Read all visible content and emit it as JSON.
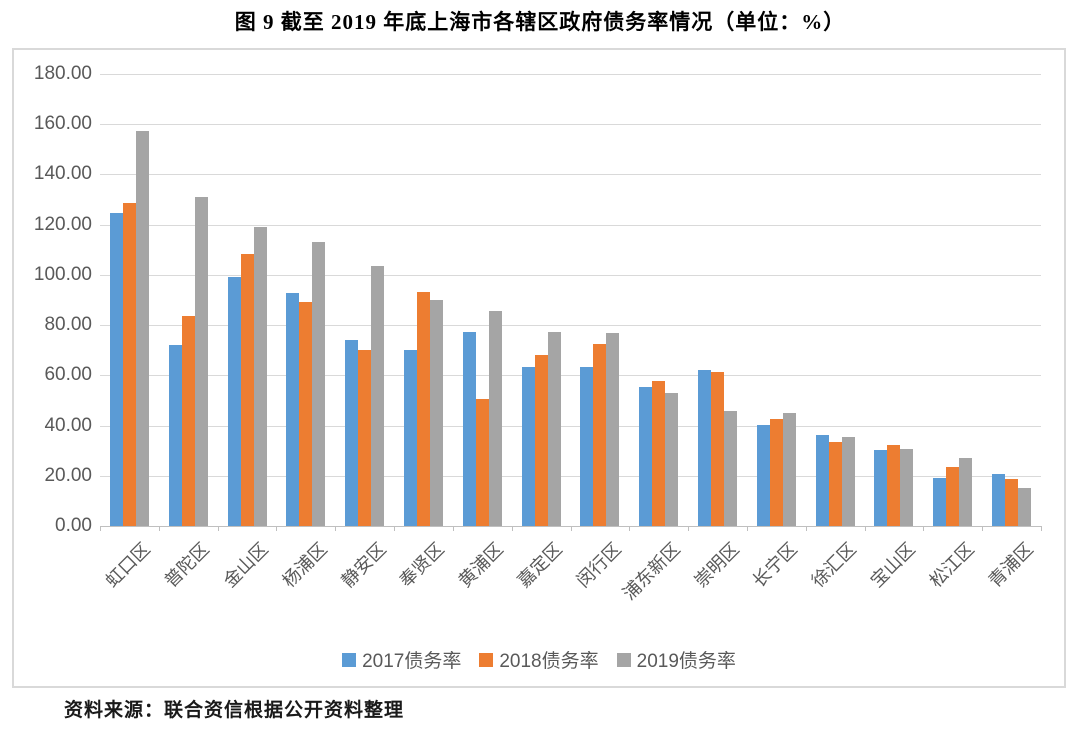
{
  "page": {
    "title": "图 9  截至 2019 年底上海市各辖区政府债务率情况（单位：%）",
    "source_note": "资料来源：联合资信根据公开资料整理"
  },
  "chart_data": {
    "type": "bar",
    "title": "图 9  截至 2019 年底上海市各辖区政府债务率情况（单位：%）",
    "unit": "%",
    "categories": [
      "虹口区",
      "普陀区",
      "金山区",
      "杨浦区",
      "静安区",
      "奉贤区",
      "黄浦区",
      "嘉定区",
      "闵行区",
      "浦东新区",
      "崇明区",
      "长宁区",
      "徐汇区",
      "宝山区",
      "松江区",
      "青浦区"
    ],
    "series": [
      {
        "name": "2017债务率",
        "color": "#5B9BD5",
        "values": [
          124.5,
          72.2,
          99.0,
          92.8,
          74.1,
          70.0,
          77.1,
          63.2,
          63.3,
          55.4,
          62.2,
          40.2,
          36.1,
          30.4,
          19.0,
          20.6
        ]
      },
      {
        "name": "2018债务率",
        "color": "#ED7D31",
        "values": [
          128.7,
          83.5,
          108.4,
          89.2,
          69.9,
          93.0,
          50.4,
          68.0,
          72.3,
          57.9,
          61.4,
          42.7,
          33.4,
          32.4,
          23.6,
          18.6
        ]
      },
      {
        "name": "2019债务率",
        "color": "#A5A5A5",
        "values": [
          157.5,
          131.2,
          119.0,
          113.3,
          103.5,
          90.1,
          85.5,
          77.3,
          76.9,
          52.8,
          46.0,
          44.9,
          35.5,
          30.8,
          27.2,
          15.3
        ]
      }
    ],
    "ylim": [
      0,
      180
    ],
    "ytick_step": 20,
    "ytick_labels": [
      "180.00",
      "160.00",
      "140.00",
      "120.00",
      "100.00",
      "80.00",
      "60.00",
      "40.00",
      "20.00",
      "0.00"
    ],
    "grid": true,
    "legend_position": "bottom",
    "xlabel": "",
    "ylabel": "",
    "source": "资料来源：联合资信根据公开资料整理"
  },
  "style": {
    "gridline_color": "#D9D9D9",
    "axis_line_color": "#BFBFBF",
    "axis_text_color": "#595959",
    "title_color": "#000000"
  }
}
